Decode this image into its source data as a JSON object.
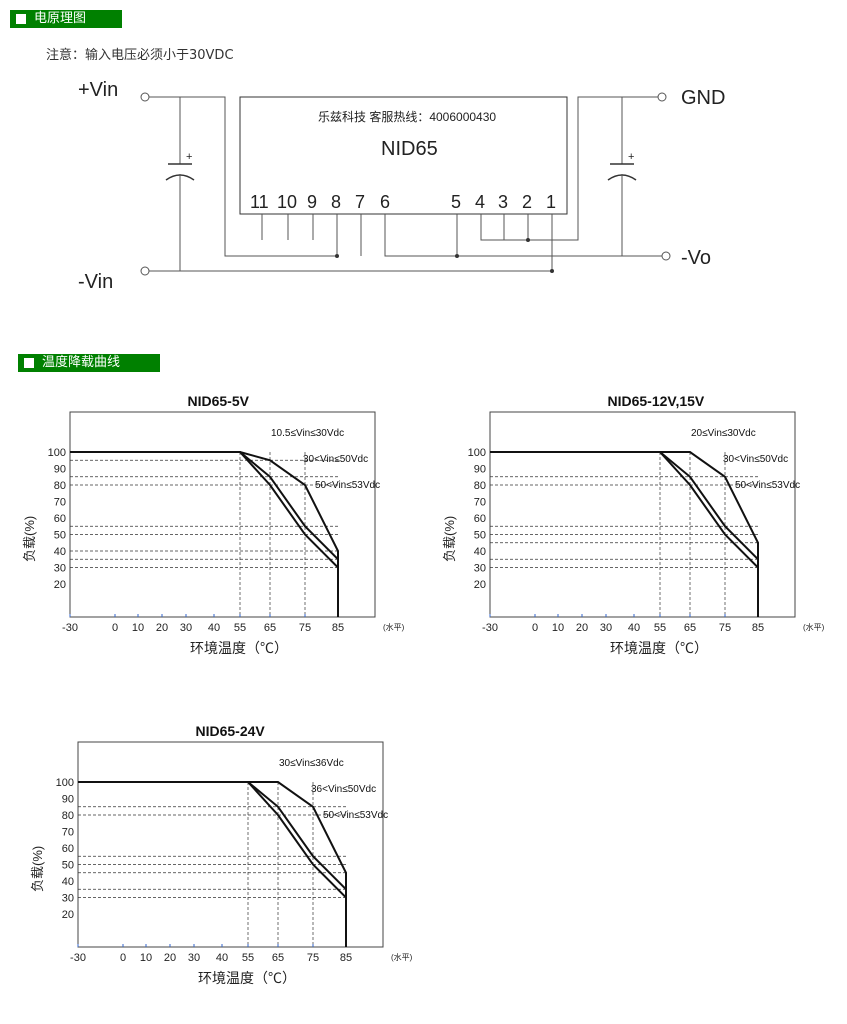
{
  "section1": {
    "title": "电原理图"
  },
  "note": "注意：输入电压必须小于30VDC",
  "circuit": {
    "labels": {
      "vin_pos": "+Vin",
      "vin_neg": "-Vin",
      "gnd": "GND",
      "vo_neg": "-Vo",
      "plus": "+"
    },
    "module": {
      "company": "乐兹科技 客服热线：4006000430",
      "name": "NID65",
      "pins_left": [
        "11",
        "10",
        "9",
        "8",
        "7",
        "6"
      ],
      "pins_right": [
        "5",
        "4",
        "3",
        "2",
        "1"
      ]
    }
  },
  "section2": {
    "title": "温度降载曲线"
  },
  "chart_data": [
    {
      "type": "line",
      "title": "NID65-5V",
      "xlabel": "环境温度（℃）",
      "ylabel": "负载(%)",
      "x_ticks": [
        "-30",
        "0",
        "10",
        "20",
        "30",
        "40",
        "55",
        "65",
        "75",
        "85"
      ],
      "y_ticks": [
        "100",
        "90",
        "80",
        "70",
        "60",
        "50",
        "40",
        "30",
        "20"
      ],
      "unit_note": "(水平)",
      "series": [
        {
          "name": "10.5≤Vin≤30Vdc",
          "x": [
            -30,
            55,
            65,
            75,
            85,
            85
          ],
          "y": [
            100,
            100,
            95,
            80,
            40,
            0
          ]
        },
        {
          "name": "30<Vin≤50Vdc",
          "x": [
            -30,
            55,
            65,
            75,
            85,
            85
          ],
          "y": [
            100,
            100,
            85,
            55,
            35,
            0
          ]
        },
        {
          "name": "50<Vin≤53Vdc",
          "x": [
            -30,
            55,
            65,
            75,
            85,
            85
          ],
          "y": [
            100,
            100,
            80,
            50,
            30,
            0
          ]
        }
      ]
    },
    {
      "type": "line",
      "title": "NID65-12V,15V",
      "xlabel": "环境温度（℃）",
      "ylabel": "负载(%)",
      "x_ticks": [
        "-30",
        "0",
        "10",
        "20",
        "30",
        "40",
        "55",
        "65",
        "75",
        "85"
      ],
      "y_ticks": [
        "100",
        "90",
        "80",
        "70",
        "60",
        "50",
        "40",
        "30",
        "20"
      ],
      "unit_note": "(水平)",
      "series": [
        {
          "name": "20≤Vin≤30Vdc",
          "x": [
            -30,
            55,
            65,
            75,
            85,
            85
          ],
          "y": [
            100,
            100,
            100,
            85,
            45,
            0
          ]
        },
        {
          "name": "30<Vin≤50Vdc",
          "x": [
            -30,
            55,
            65,
            75,
            85,
            85
          ],
          "y": [
            100,
            100,
            85,
            55,
            35,
            0
          ]
        },
        {
          "name": "50<Vin≤53Vdc",
          "x": [
            -30,
            55,
            65,
            75,
            85,
            85
          ],
          "y": [
            100,
            100,
            80,
            50,
            30,
            0
          ]
        }
      ]
    },
    {
      "type": "line",
      "title": "NID65-24V",
      "xlabel": "环境温度（℃）",
      "ylabel": "负载(%)",
      "x_ticks": [
        "-30",
        "0",
        "10",
        "20",
        "30",
        "40",
        "55",
        "65",
        "75",
        "85"
      ],
      "y_ticks": [
        "100",
        "90",
        "80",
        "70",
        "60",
        "50",
        "40",
        "30",
        "20"
      ],
      "unit_note": "(水平)",
      "series": [
        {
          "name": "30≤Vin≤36Vdc",
          "x": [
            -30,
            55,
            65,
            75,
            85,
            85
          ],
          "y": [
            100,
            100,
            100,
            85,
            45,
            0
          ]
        },
        {
          "name": "36<Vin≤50Vdc",
          "x": [
            -30,
            55,
            65,
            75,
            85,
            85
          ],
          "y": [
            100,
            100,
            85,
            55,
            35,
            0
          ]
        },
        {
          "name": "50<Vin≤53Vdc",
          "x": [
            -30,
            55,
            65,
            75,
            85,
            85
          ],
          "y": [
            100,
            100,
            80,
            50,
            30,
            0
          ]
        }
      ]
    }
  ]
}
